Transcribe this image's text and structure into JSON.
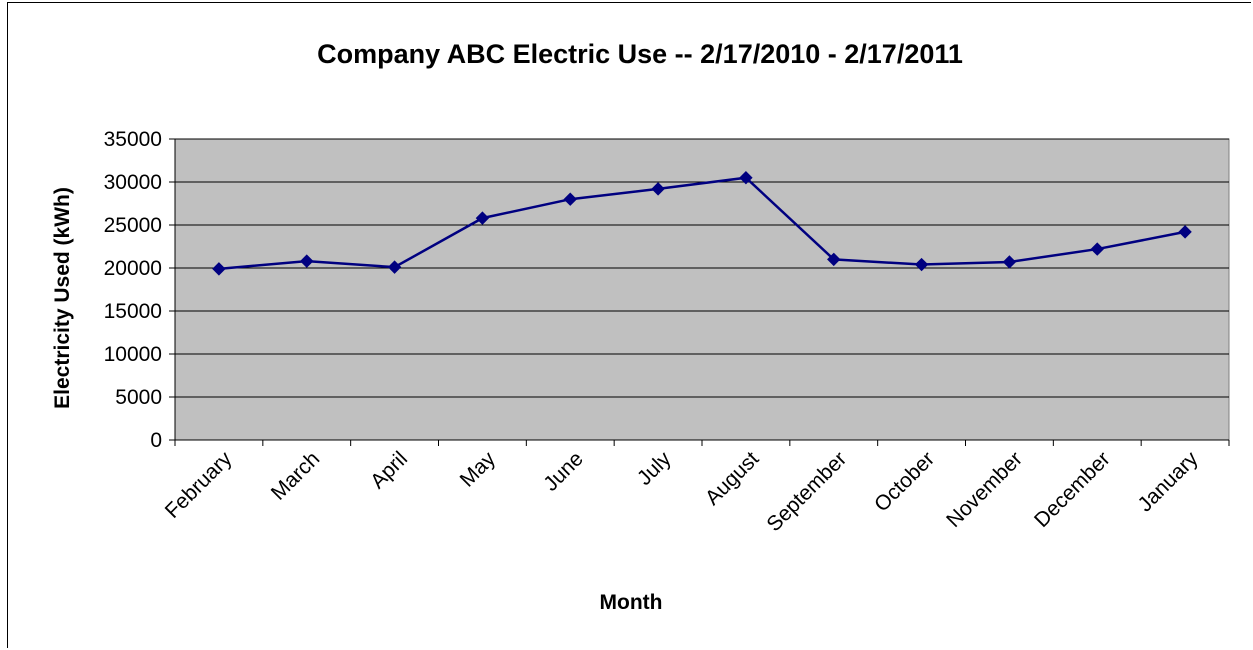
{
  "chart_data": {
    "type": "line",
    "title": "Company ABC Electric Use -- 2/17/2010 - 2/17/2011",
    "xlabel": "Month",
    "ylabel": "Electricity Used (kWh)",
    "ylim": [
      0,
      35000
    ],
    "yticks": [
      0,
      5000,
      10000,
      15000,
      20000,
      25000,
      30000,
      35000
    ],
    "grid": true,
    "categories": [
      "February",
      "March",
      "April",
      "May",
      "June",
      "July",
      "August",
      "September",
      "October",
      "November",
      "December",
      "January"
    ],
    "series": [
      {
        "values": [
          19900,
          20800,
          20100,
          25800,
          28000,
          29200,
          30500,
          21000,
          20400,
          20700,
          22200,
          24200
        ]
      }
    ],
    "colors": {
      "plot_background": "#c0c0c0",
      "line": "#000080",
      "gridline": "#000000"
    }
  }
}
